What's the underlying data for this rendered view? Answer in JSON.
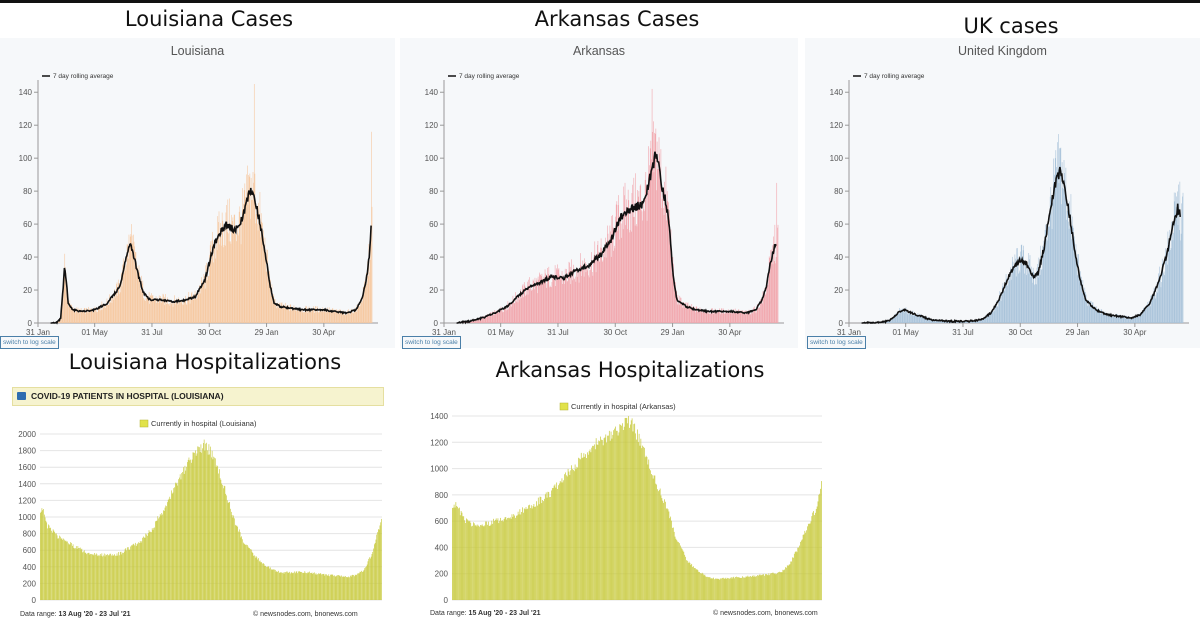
{
  "titles": {
    "louisiana_cases": "Louisiana Cases",
    "arkansas_cases": "Arkansas Cases",
    "uk_cases": "UK cases",
    "louisiana_hosp": "Louisiana Hospitalizations",
    "arkansas_hosp": "Arkansas Hospitalizations"
  },
  "log_scale_label": "switch to log scale",
  "colors": {
    "louisiana_bars": "#f6c8a0",
    "arkansas_bars": "#f1a6ad",
    "uk_bars": "#a9c3da",
    "rolling_line": "#111111",
    "hosp_bars": "#c7c93a",
    "hosp_legend_swatch": "#e1e24a"
  },
  "hosp_source": "© newsnodes.com, bnonews.com",
  "chart_data": [
    {
      "id": "la_cases",
      "type": "bar",
      "subtitle": "Louisiana",
      "legend": "7 day rolling average",
      "ylim": [
        0,
        145
      ],
      "yticks": [
        0,
        20,
        40,
        60,
        80,
        100,
        120,
        140
      ],
      "xticks": [
        "31 Jan",
        "01 May",
        "31 Jul",
        "30 Oct",
        "29 Jan",
        "30 Apr"
      ],
      "xtick_days": [
        0,
        90,
        181,
        272,
        363,
        454
      ],
      "days": 540,
      "start_day": 20,
      "rolling_average": [
        [
          20,
          0
        ],
        [
          30,
          0
        ],
        [
          36,
          3
        ],
        [
          40,
          22
        ],
        [
          42,
          34
        ],
        [
          45,
          25
        ],
        [
          48,
          12
        ],
        [
          55,
          8
        ],
        [
          70,
          7
        ],
        [
          90,
          8
        ],
        [
          110,
          12
        ],
        [
          130,
          22
        ],
        [
          140,
          40
        ],
        [
          146,
          48
        ],
        [
          150,
          44
        ],
        [
          155,
          36
        ],
        [
          160,
          28
        ],
        [
          168,
          18
        ],
        [
          178,
          14
        ],
        [
          195,
          14
        ],
        [
          215,
          13
        ],
        [
          235,
          14
        ],
        [
          250,
          16
        ],
        [
          265,
          26
        ],
        [
          280,
          48
        ],
        [
          292,
          56
        ],
        [
          300,
          60
        ],
        [
          306,
          58
        ],
        [
          312,
          56
        ],
        [
          320,
          60
        ],
        [
          326,
          65
        ],
        [
          333,
          76
        ],
        [
          338,
          80
        ],
        [
          344,
          75
        ],
        [
          352,
          62
        ],
        [
          360,
          45
        ],
        [
          368,
          24
        ],
        [
          375,
          12
        ],
        [
          385,
          10
        ],
        [
          400,
          9
        ],
        [
          420,
          8
        ],
        [
          440,
          8
        ],
        [
          455,
          8
        ],
        [
          470,
          7
        ],
        [
          490,
          6
        ],
        [
          505,
          8
        ],
        [
          515,
          15
        ],
        [
          522,
          28
        ],
        [
          526,
          40
        ],
        [
          529,
          58
        ]
      ],
      "peaks": [
        [
          42,
          42
        ],
        [
          148,
          60
        ],
        [
          343,
          146
        ],
        [
          529,
          116
        ]
      ]
    },
    {
      "id": "ar_cases",
      "type": "bar",
      "subtitle": "Arkansas",
      "legend": "7 day rolling average",
      "ylim": [
        0,
        145
      ],
      "yticks": [
        0,
        20,
        40,
        60,
        80,
        100,
        120,
        140
      ],
      "xticks": [
        "31 Jan",
        "01 May",
        "31 Jul",
        "30 Oct",
        "29 Jan",
        "30 Apr"
      ],
      "xtick_days": [
        0,
        90,
        181,
        272,
        363,
        454
      ],
      "days": 540,
      "start_day": 20,
      "rolling_average": [
        [
          20,
          0
        ],
        [
          40,
          1
        ],
        [
          60,
          3
        ],
        [
          80,
          6
        ],
        [
          100,
          10
        ],
        [
          120,
          17
        ],
        [
          135,
          22
        ],
        [
          150,
          24
        ],
        [
          170,
          28
        ],
        [
          190,
          27
        ],
        [
          210,
          32
        ],
        [
          230,
          35
        ],
        [
          250,
          42
        ],
        [
          265,
          50
        ],
        [
          280,
          64
        ],
        [
          300,
          70
        ],
        [
          315,
          72
        ],
        [
          322,
          80
        ],
        [
          330,
          92
        ],
        [
          336,
          102
        ],
        [
          340,
          98
        ],
        [
          346,
          82
        ],
        [
          352,
          74
        ],
        [
          358,
          60
        ],
        [
          364,
          28
        ],
        [
          370,
          14
        ],
        [
          385,
          10
        ],
        [
          400,
          8
        ],
        [
          420,
          7
        ],
        [
          440,
          7
        ],
        [
          460,
          7
        ],
        [
          480,
          6
        ],
        [
          495,
          8
        ],
        [
          505,
          14
        ],
        [
          512,
          22
        ],
        [
          518,
          36
        ],
        [
          524,
          45
        ],
        [
          528,
          49
        ]
      ],
      "peaks": [
        [
          330,
          142
        ],
        [
          528,
          85
        ]
      ]
    },
    {
      "id": "uk_cases",
      "type": "bar",
      "subtitle": "United Kingdom",
      "legend": "7 day rolling average",
      "ylim": [
        0,
        145
      ],
      "yticks": [
        0,
        20,
        40,
        60,
        80,
        100,
        120,
        140
      ],
      "xticks": [
        "31 Jan",
        "01 May",
        "31 Jul",
        "30 Oct",
        "29 Jan",
        "30 Apr"
      ],
      "xtick_days": [
        0,
        90,
        181,
        272,
        363,
        454
      ],
      "days": 540,
      "start_day": 20,
      "rolling_average": [
        [
          20,
          0
        ],
        [
          40,
          0
        ],
        [
          60,
          1
        ],
        [
          70,
          3
        ],
        [
          80,
          7
        ],
        [
          88,
          8
        ],
        [
          100,
          6
        ],
        [
          115,
          4
        ],
        [
          130,
          2
        ],
        [
          160,
          1
        ],
        [
          190,
          1
        ],
        [
          210,
          2
        ],
        [
          225,
          6
        ],
        [
          238,
          14
        ],
        [
          250,
          25
        ],
        [
          262,
          34
        ],
        [
          272,
          38
        ],
        [
          282,
          36
        ],
        [
          292,
          28
        ],
        [
          300,
          30
        ],
        [
          310,
          46
        ],
        [
          320,
          70
        ],
        [
          330,
          88
        ],
        [
          336,
          92
        ],
        [
          342,
          82
        ],
        [
          350,
          66
        ],
        [
          358,
          46
        ],
        [
          366,
          28
        ],
        [
          376,
          14
        ],
        [
          392,
          8
        ],
        [
          410,
          5
        ],
        [
          430,
          4
        ],
        [
          448,
          3
        ],
        [
          462,
          5
        ],
        [
          478,
          12
        ],
        [
          492,
          25
        ],
        [
          505,
          42
        ],
        [
          515,
          60
        ],
        [
          522,
          70
        ],
        [
          526,
          65
        ]
      ],
      "peaks": [
        [
          335,
          106
        ],
        [
          523,
          84
        ]
      ]
    },
    {
      "id": "la_hosp",
      "type": "bar",
      "title": "COVID-19 PATIENTS IN HOSPITAL (LOUISIANA)",
      "legend": "Currently in hospital (Louisiana)",
      "ylim": [
        0,
        2000
      ],
      "yticks": [
        0,
        200,
        400,
        600,
        800,
        1000,
        1200,
        1400,
        1600,
        1800,
        2000
      ],
      "data_range_label": "Data range:",
      "data_range": "13 Aug '20  -  23 Jul '21",
      "values_profile": [
        [
          0,
          1050
        ],
        [
          3,
          1100
        ],
        [
          8,
          900
        ],
        [
          20,
          780
        ],
        [
          40,
          660
        ],
        [
          60,
          560
        ],
        [
          80,
          540
        ],
        [
          100,
          560
        ],
        [
          110,
          620
        ],
        [
          125,
          700
        ],
        [
          140,
          860
        ],
        [
          155,
          1100
        ],
        [
          170,
          1400
        ],
        [
          185,
          1650
        ],
        [
          195,
          1800
        ],
        [
          205,
          1860
        ],
        [
          212,
          1800
        ],
        [
          222,
          1580
        ],
        [
          232,
          1300
        ],
        [
          245,
          900
        ],
        [
          255,
          700
        ],
        [
          268,
          540
        ],
        [
          280,
          420
        ],
        [
          292,
          360
        ],
        [
          302,
          330
        ],
        [
          312,
          330
        ],
        [
          330,
          340
        ],
        [
          345,
          320
        ],
        [
          360,
          300
        ],
        [
          375,
          290
        ],
        [
          385,
          280
        ],
        [
          395,
          300
        ],
        [
          405,
          360
        ],
        [
          415,
          560
        ],
        [
          422,
          800
        ],
        [
          427,
          1000
        ]
      ]
    },
    {
      "id": "ar_hosp",
      "type": "bar",
      "legend": "Currently in hospital (Arkansas)",
      "ylim": [
        0,
        1400
      ],
      "yticks": [
        0,
        200,
        400,
        600,
        800,
        1000,
        1200,
        1400
      ],
      "data_range_label": "Data range:",
      "data_range": "15 Aug '20  -  23 Jul '21",
      "values_profile": [
        [
          0,
          700
        ],
        [
          4,
          720
        ],
        [
          15,
          600
        ],
        [
          30,
          560
        ],
        [
          50,
          600
        ],
        [
          70,
          640
        ],
        [
          90,
          720
        ],
        [
          110,
          800
        ],
        [
          130,
          950
        ],
        [
          150,
          1100
        ],
        [
          165,
          1200
        ],
        [
          180,
          1250
        ],
        [
          190,
          1300
        ],
        [
          200,
          1380
        ],
        [
          208,
          1300
        ],
        [
          220,
          1100
        ],
        [
          232,
          900
        ],
        [
          245,
          700
        ],
        [
          255,
          480
        ],
        [
          268,
          300
        ],
        [
          280,
          220
        ],
        [
          292,
          170
        ],
        [
          305,
          160
        ],
        [
          320,
          170
        ],
        [
          340,
          180
        ],
        [
          360,
          195
        ],
        [
          375,
          210
        ],
        [
          385,
          280
        ],
        [
          395,
          400
        ],
        [
          405,
          560
        ],
        [
          415,
          700
        ],
        [
          421,
          880
        ]
      ]
    }
  ]
}
